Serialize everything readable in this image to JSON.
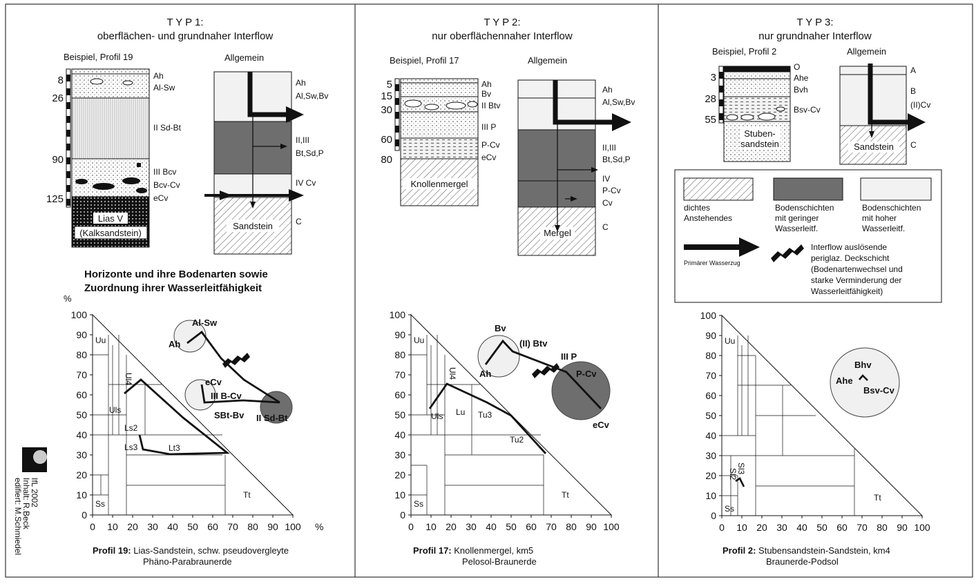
{
  "panels": [
    {
      "type_title": "T Y P 1:",
      "subtitle": "oberflächen- und grundnaher Interflow",
      "example_label": "Beispiel, Profil 19",
      "general_label": "Allgemein",
      "depths": [
        "8",
        "26",
        "90",
        "125"
      ],
      "horizons": [
        "Ah",
        "Al-Sw",
        "II Sd-Bt",
        "III Bcv",
        "Bcv-Cv",
        "eCv"
      ],
      "base_rock": [
        "Lias V",
        "(Kalksandstein)"
      ],
      "general_layers": [
        "Ah",
        "Al,Sw,Bv",
        "II,III",
        "Bt,Sd,P",
        "IV Cv",
        "C"
      ],
      "general_base": "Sandstein",
      "triangle_zones": [
        "Uu",
        "Ul4",
        "Uls",
        "Ls2",
        "Ls3",
        "Lt3",
        "Ss",
        "Tt"
      ],
      "triangle_points": [
        "Ah",
        "Al-Sw",
        "eCv",
        "III B-Cv",
        "SBt-Bv",
        "II Sd-Bt"
      ],
      "caption_bold": "Profil 19:",
      "caption_text": "Lias-Sandstein, schw. pseudovergleyte",
      "caption_line2": "Phäno-Parabraunerde"
    },
    {
      "type_title": "T Y P 2:",
      "subtitle": "nur oberflächennaher Interflow",
      "example_label": "Beispiel, Profil 17",
      "general_label": "Allgemein",
      "depths": [
        "5",
        "15",
        "30",
        "60",
        "80"
      ],
      "horizons": [
        "Ah",
        "Bv",
        "II Btv",
        "III P",
        "P-Cv",
        "eCv"
      ],
      "base_rock": [
        "Knollenmergel"
      ],
      "general_layers": [
        "Ah",
        "Al,Sw,Bv",
        "II,III",
        "Bt,Sd,P",
        "IV",
        "P-Cv",
        "Cv",
        "C"
      ],
      "general_base": "Mergel",
      "triangle_zones": [
        "Uu",
        "Ul4",
        "Uls",
        "Lu",
        "Tu3",
        "Tu2",
        "Ss",
        "Tt"
      ],
      "triangle_points": [
        "Bv",
        "(II) Btv",
        "Ah",
        "III P",
        "P-Cv",
        "eCv"
      ],
      "caption_bold": "Profil 17:",
      "caption_text": "Knollenmergel, km5",
      "caption_line2": "Pelosol-Braunerde"
    },
    {
      "type_title": "T Y P 3:",
      "subtitle": "nur grundnaher Interflow",
      "example_label": "Beispiel, Profil 2",
      "general_label": "Allgemein",
      "depths": [
        "3",
        "28",
        "55"
      ],
      "horizons": [
        "O",
        "Ahe",
        "Bvh",
        "Bsv-Cv"
      ],
      "base_rock": [
        "Stuben-",
        "sandstein"
      ],
      "general_layers": [
        "A",
        "B",
        "(II)Cv",
        "C"
      ],
      "general_base": "Sandstein",
      "triangle_zones": [
        "Uu",
        "Sl3",
        "Sl2",
        "Ss",
        "Tt"
      ],
      "triangle_points": [
        "Bhv",
        "Ahe",
        "Bsv-Cv"
      ],
      "caption_bold": "Profil 2:",
      "caption_text": "Stubensandstein-Sandstein, km4",
      "caption_line2": "Braunerde-Podsol"
    }
  ],
  "section_heading": [
    "Horizonte und ihre Bodenarten sowie",
    "Zuordnung ihrer Wasserleitfähigkeit"
  ],
  "axis": {
    "percent": "%",
    "y_ticks": [
      "100",
      "90",
      "80",
      "70",
      "60",
      "50",
      "40",
      "30",
      "20",
      "10",
      "0"
    ],
    "x_ticks": [
      "0",
      "10",
      "20",
      "30",
      "40",
      "50",
      "60",
      "70",
      "80",
      "90",
      "100"
    ]
  },
  "legend": {
    "item1": [
      "dichtes",
      "Anstehendes"
    ],
    "item2": [
      "Bodenschichten",
      "mit geringer",
      "Wasserleitf."
    ],
    "item3": [
      "Bodenschichten",
      "mit hoher",
      "Wasserleitf."
    ],
    "arrow_label": "Primärer Wasserzug",
    "interflow_label": [
      "Interflow auslösende",
      "periglaz. Deckschicht",
      "(Bodenartenwechsel und",
      "starke Verminderung der",
      "Wasserleitfähigkeit)"
    ]
  },
  "credits": [
    "IfL 2002",
    "Inhalt: R.Beck",
    "edifiert: M.Schmiedel"
  ],
  "colors": {
    "dark_layer": "#6e6e6e",
    "light_layer": "#f2f2f2",
    "ink": "#111111"
  }
}
